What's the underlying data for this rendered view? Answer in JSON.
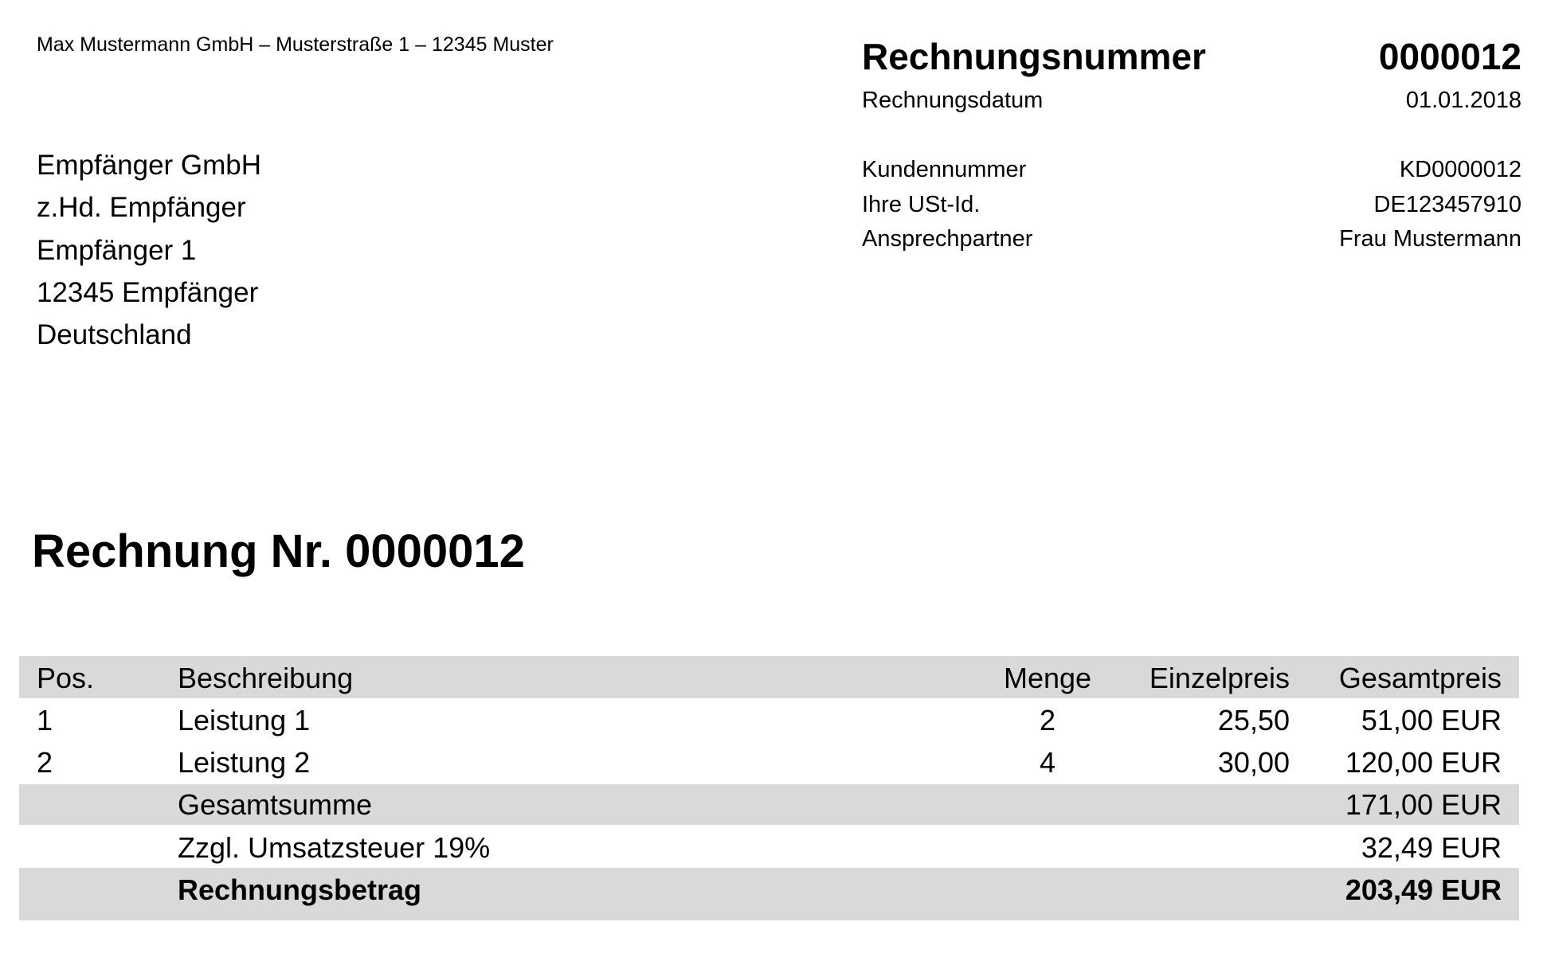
{
  "sender_line": "Max Mustermann GmbH – Musterstraße 1 – 12345 Muster",
  "recipient": [
    "Empfänger GmbH",
    "z.Hd. Empfänger",
    "Empfänger 1",
    "12345 Empfänger",
    "Deutschland"
  ],
  "meta": {
    "invoice_number_label": "Rechnungsnummer",
    "invoice_number": "0000012",
    "invoice_date_label": "Rechnungsdatum",
    "invoice_date": "01.01.2018",
    "customer_number_label": "Kundennummer",
    "customer_number": "KD0000012",
    "vat_id_label": "Ihre USt-Id.",
    "vat_id": "DE123457910",
    "contact_label": "Ansprechpartner",
    "contact": "Frau Mustermann"
  },
  "title": "Rechnung Nr. 0000012",
  "table": {
    "headers": {
      "pos": "Pos.",
      "description": "Beschreibung",
      "quantity": "Menge",
      "unit_price": "Einzelpreis",
      "total": "Gesamtpreis"
    },
    "rows": [
      {
        "pos": "1",
        "description": "Leistung 1",
        "quantity": "2",
        "unit_price": "25,50",
        "total": "51,00 EUR"
      },
      {
        "pos": "2",
        "description": "Leistung 2",
        "quantity": "4",
        "unit_price": "30,00",
        "total": "120,00 EUR"
      }
    ],
    "subtotal_label": "Gesamtsumme",
    "subtotal": "171,00 EUR",
    "tax_label": "Zzgl. Umsatzsteuer 19%",
    "tax": "32,49 EUR",
    "grand_total_label": "Rechnungsbetrag",
    "grand_total": "203,49 EUR"
  },
  "colors": {
    "band": "#d9d9d9"
  }
}
